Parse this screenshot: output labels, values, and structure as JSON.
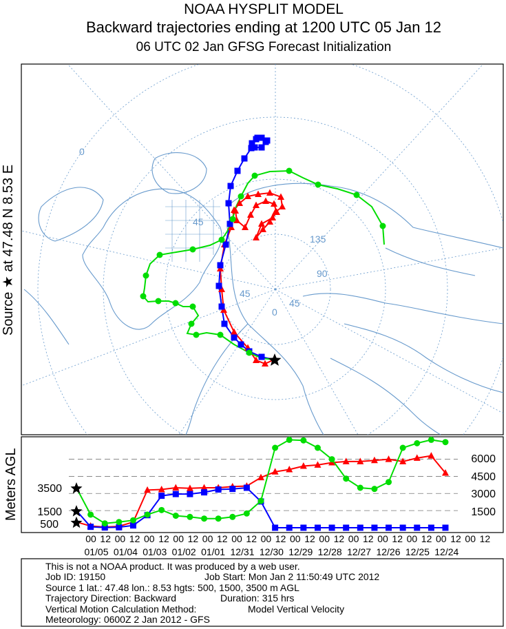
{
  "header": {
    "line1": "NOAA HYSPLIT MODEL",
    "line2": "Backward trajectories ending at 1200 UTC 05 Jan 12",
    "line3": "06 UTC 02 Jan    GFSG  Forecast Initialization"
  },
  "map": {
    "source_label": "Source ★ at    47.48 N    8.53 E",
    "longitude_labels": [
      "0",
      "45",
      "135",
      "90",
      "45",
      "0",
      "45"
    ],
    "coast_color": "#6699cc",
    "grid_color": "#6699cc"
  },
  "chart_data": {
    "type": "line",
    "title": "NOAA HYSPLIT MODEL",
    "ylabel": "Meters AGL",
    "y_ticks_left": [
      "3500",
      "1500",
      "500"
    ],
    "y_ticks_right": [
      "6000",
      "4500",
      "3000",
      "1500"
    ],
    "x_hour_labels": [
      "00",
      "12",
      "00",
      "12",
      "00",
      "12",
      "00",
      "12",
      "00",
      "12",
      "00",
      "12",
      "00",
      "12",
      "00",
      "12",
      "00",
      "12",
      "00",
      "12",
      "00",
      "12",
      "00",
      "12",
      "00",
      "12",
      "00",
      "12"
    ],
    "x_date_labels": [
      "01/05",
      "01/04",
      "01/03",
      "01/02",
      "01/01",
      "12/31",
      "12/30",
      "12/29",
      "12/28",
      "12/27",
      "12/26",
      "12/25",
      "12/24"
    ],
    "hours_before_end": [
      0,
      12,
      24,
      36,
      48,
      60,
      72,
      84,
      96,
      108,
      120,
      132,
      144,
      156,
      168,
      180,
      192,
      204,
      216,
      228,
      240,
      252,
      264,
      276,
      288,
      300,
      312
    ],
    "series": [
      {
        "color": "#ff0000",
        "marker": "triangle",
        "start_height": 500,
        "values": [
          500,
          150,
          60,
          120,
          500,
          3300,
          3350,
          3500,
          3450,
          3500,
          3500,
          3600,
          3650,
          4400,
          4900,
          5100,
          5400,
          5500,
          5700,
          5800,
          5800,
          5900,
          6000,
          5800,
          6100,
          6300,
          4800
        ]
      },
      {
        "color": "#0000ff",
        "marker": "square",
        "start_height": 1500,
        "values": [
          1500,
          80,
          20,
          40,
          200,
          1100,
          2800,
          2950,
          2950,
          3100,
          3350,
          3400,
          3500,
          2300,
          0,
          0,
          0,
          0,
          0,
          0,
          0,
          0,
          0,
          0,
          0,
          0,
          0
        ]
      },
      {
        "color": "#00dd00",
        "marker": "circle",
        "start_height": 3500,
        "values": [
          3500,
          1150,
          380,
          500,
          650,
          1150,
          1550,
          1050,
          950,
          800,
          800,
          950,
          1250,
          2350,
          7000,
          7700,
          7650,
          7000,
          6000,
          4300,
          3500,
          3400,
          4000,
          7000,
          7400,
          7700,
          7500
        ]
      }
    ]
  },
  "info": {
    "line1": "This is not a NOAA product. It was produced by a web user.",
    "line2a": "Job ID: 19150",
    "line2b": "Job Start: Mon Jan  2 11:50:49 UTC 2012",
    "line3": "Source 1 lat.: 47.48  lon.: 8.53  hgts: 500, 1500, 3500 m AGL",
    "line4a": "Trajectory Direction: Backward",
    "line4b": "Duration: 315 hrs",
    "line5a": "Vertical Motion Calculation Method:",
    "line5b": "Model Vertical Velocity",
    "line6": "Meteorology: 0600Z  2 Jan 2012 - GFS"
  }
}
